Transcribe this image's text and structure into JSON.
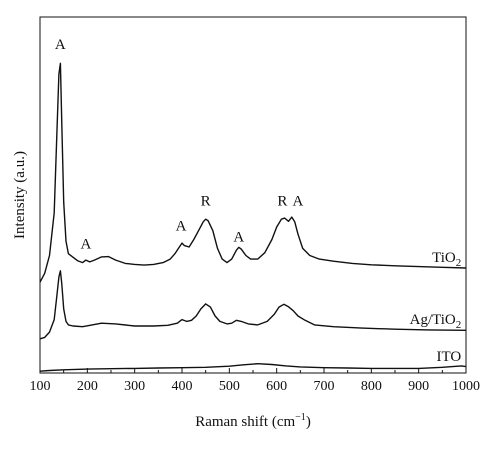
{
  "chart_data": {
    "type": "line",
    "xlabel": "Raman shift (cm",
    "xlabel_sup": "−1",
    "xlabel_end": ")",
    "ylabel": "Intensity (a.u.)",
    "xlim": [
      100,
      1000
    ],
    "ylim": [
      0,
      100
    ],
    "x_ticks": [
      "100",
      "200",
      "300",
      "400",
      "500",
      "600",
      "700",
      "800",
      "900",
      "1000"
    ],
    "y_ticks_visible": false,
    "grid": false,
    "series": [
      {
        "name": "TiO",
        "name_sub": "2",
        "label_x": 990,
        "x": [
          100,
          110,
          120,
          130,
          135,
          140,
          143,
          146,
          150,
          155,
          160,
          170,
          180,
          190,
          197,
          205,
          215,
          230,
          245,
          260,
          280,
          300,
          320,
          340,
          360,
          375,
          385,
          395,
          400,
          405,
          415,
          425,
          435,
          445,
          450,
          455,
          465,
          475,
          485,
          495,
          505,
          515,
          520,
          525,
          535,
          545,
          560,
          575,
          590,
          600,
          610,
          617,
          625,
          632,
          638,
          645,
          655,
          670,
          690,
          720,
          760,
          800,
          850,
          900,
          950,
          1000
        ],
        "y": [
          25.5,
          28,
          33,
          45,
          65,
          84,
          87,
          70,
          48,
          37,
          33.5,
          32.5,
          31.5,
          31,
          31.7,
          31.2,
          31.7,
          32.6,
          32.7,
          31.7,
          30.8,
          30.5,
          30.3,
          30.5,
          31,
          32,
          33.5,
          35.5,
          36.5,
          35.8,
          35.4,
          37.5,
          40,
          42.5,
          43.2,
          42.8,
          40,
          35,
          32,
          31,
          32,
          34.5,
          35.3,
          34.8,
          33,
          32,
          32,
          33.8,
          37.5,
          41,
          43.2,
          43.5,
          42.6,
          43.8,
          42.5,
          39,
          35,
          33,
          32,
          31.4,
          30.8,
          30.4,
          30.1,
          29.9,
          29.7,
          29.5
        ]
      },
      {
        "name": "Ag/TiO",
        "name_sub": "2",
        "label_x": 990,
        "x": [
          100,
          110,
          120,
          130,
          135,
          140,
          143,
          146,
          150,
          155,
          160,
          170,
          190,
          210,
          230,
          260,
          300,
          340,
          370,
          390,
          400,
          410,
          420,
          430,
          440,
          450,
          460,
          470,
          480,
          495,
          505,
          515,
          525,
          540,
          560,
          580,
          595,
          605,
          615,
          625,
          635,
          645,
          660,
          680,
          720,
          780,
          850,
          920,
          1000
        ],
        "y": [
          9.6,
          10,
          11.5,
          15,
          21,
          27,
          28.7,
          25,
          18,
          14.5,
          13.5,
          13.2,
          13,
          13.5,
          14,
          13.8,
          13.2,
          13.2,
          13.4,
          14,
          15,
          14.5,
          14.8,
          16,
          18,
          19.4,
          18.5,
          16,
          14.5,
          13.8,
          14,
          14.8,
          14.5,
          13.8,
          13.5,
          14.5,
          16.5,
          18.5,
          19.3,
          18.6,
          17.5,
          16,
          14.8,
          13.5,
          13,
          12.6,
          12.3,
          12.1,
          12
        ]
      },
      {
        "name": "ITO",
        "name_sub": "",
        "label_x": 990,
        "x": [
          100,
          120,
          150,
          200,
          250,
          300,
          350,
          400,
          450,
          500,
          530,
          560,
          590,
          620,
          650,
          700,
          750,
          800,
          850,
          900,
          950,
          990,
          1000
        ],
        "y": [
          0.5,
          0.7,
          0.9,
          1.1,
          1.2,
          1.3,
          1.4,
          1.5,
          1.6,
          1.9,
          2.3,
          2.6,
          2.4,
          2.0,
          1.7,
          1.5,
          1.4,
          1.3,
          1.3,
          1.3,
          1.6,
          2.0,
          1.8
        ]
      }
    ],
    "annotations": [
      {
        "text": "A",
        "x": 143,
        "y": 91
      },
      {
        "text": "A",
        "x": 197,
        "y": 35
      },
      {
        "text": "A",
        "x": 398,
        "y": 40
      },
      {
        "text": "R",
        "x": 450,
        "y": 47
      },
      {
        "text": "A",
        "x": 520,
        "y": 37
      },
      {
        "text": "R",
        "x": 612,
        "y": 47
      },
      {
        "text": "A",
        "x": 645,
        "y": 47
      }
    ]
  }
}
